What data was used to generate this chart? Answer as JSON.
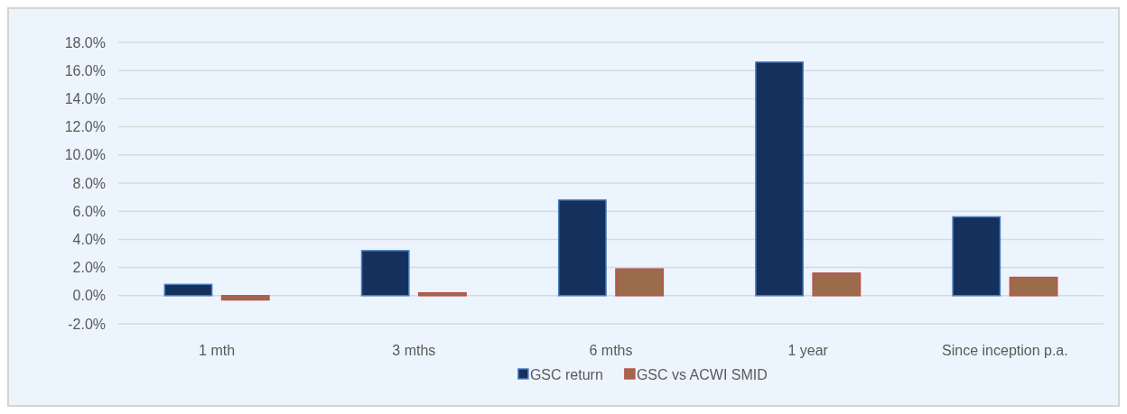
{
  "chart_data": {
    "type": "bar",
    "categories": [
      "1 mth",
      "3 mths",
      "6 mths",
      "1 year",
      "Since inception p.a."
    ],
    "series": [
      {
        "name": "GSC return",
        "color": "#14305c",
        "values": [
          0.8,
          3.2,
          6.8,
          16.6,
          5.6
        ]
      },
      {
        "name": "GSC vs ACWI SMID",
        "color": "#9c6b4a",
        "values": [
          -0.3,
          0.2,
          1.9,
          1.6,
          1.3
        ]
      }
    ],
    "ylim": [
      -2,
      18
    ],
    "yticks": [
      {
        "value": -2,
        "label": "-2.0%"
      },
      {
        "value": 0,
        "label": "0.0%"
      },
      {
        "value": 2,
        "label": "2.0%"
      },
      {
        "value": 4,
        "label": "4.0%"
      },
      {
        "value": 6,
        "label": "6.0%"
      },
      {
        "value": 8,
        "label": "8.0%"
      },
      {
        "value": 10,
        "label": "10.0%"
      },
      {
        "value": 12,
        "label": "12.0%"
      },
      {
        "value": 14,
        "label": "14.0%"
      },
      {
        "value": 16,
        "label": "16.0%"
      },
      {
        "value": 18,
        "label": "18.0%"
      }
    ],
    "grid": "y",
    "legend": "bottom"
  }
}
